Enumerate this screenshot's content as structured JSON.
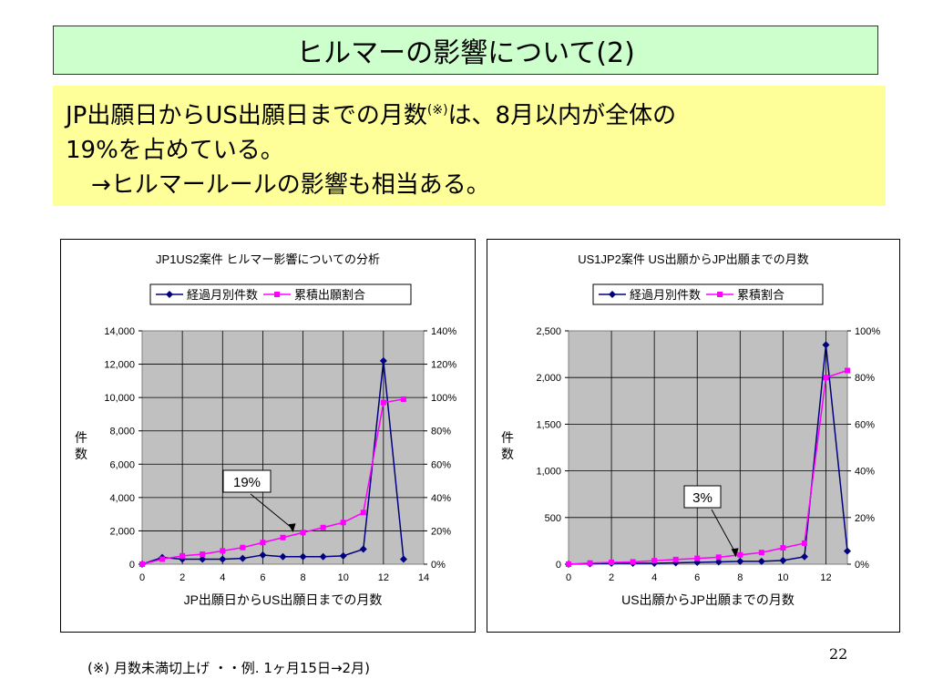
{
  "title": "ヒルマーの影響について(2)",
  "summary": {
    "line1a": "JP出願日からUS出願日までの月数",
    "line1_sup": "(※)",
    "line1b": "は、8月以内が全体の",
    "line2": "19%を占めている。",
    "line3": "→ヒルマールールの影響も相当ある。"
  },
  "chart_data": [
    {
      "type": "line",
      "title": "JP1US2案件  ヒルマー影響についての分析",
      "xlabel": "JP出願日からUS出願日までの月数",
      "ylabel": "件数",
      "y2label": "",
      "xlim": [
        0,
        14
      ],
      "xticks": [
        "0",
        "2",
        "4",
        "6",
        "8",
        "10",
        "12",
        "14"
      ],
      "ylim": [
        0,
        14000
      ],
      "yticks": [
        "0",
        "2,000",
        "4,000",
        "6,000",
        "8,000",
        "10,000",
        "12,000",
        "14,000"
      ],
      "y2lim": [
        0,
        140
      ],
      "y2ticks": [
        "0%",
        "20%",
        "40%",
        "60%",
        "80%",
        "100%",
        "120%",
        "140%"
      ],
      "grid": true,
      "legend_position": "top",
      "series": [
        {
          "name": "経過月別件数",
          "axis": "left",
          "color": "#000080",
          "marker": "diamond",
          "x": [
            0,
            1,
            2,
            3,
            4,
            5,
            6,
            7,
            8,
            9,
            10,
            11,
            12,
            13
          ],
          "values": [
            0,
            400,
            300,
            300,
            300,
            350,
            550,
            450,
            450,
            450,
            500,
            900,
            12200,
            300
          ]
        },
        {
          "name": "累積出願割合",
          "axis": "right",
          "color": "#ff00ff",
          "marker": "square",
          "x": [
            0,
            1,
            2,
            3,
            4,
            5,
            6,
            7,
            8,
            9,
            10,
            11,
            12,
            13
          ],
          "values": [
            0,
            3,
            5,
            6,
            8,
            10,
            13,
            16,
            19,
            22,
            25,
            31,
            97,
            99
          ]
        }
      ],
      "annotation": {
        "label": "19%",
        "x": 7.5,
        "y2": 19
      }
    },
    {
      "type": "line",
      "title": "US1JP2案件  US出願からJP出願までの月数",
      "xlabel": "US出願からJP出願までの月数",
      "ylabel": "件数",
      "y2label": "",
      "xlim": [
        0,
        13
      ],
      "xticks": [
        "0",
        "2",
        "4",
        "6",
        "8",
        "10",
        "12"
      ],
      "ylim": [
        0,
        2500
      ],
      "yticks": [
        "0",
        "500",
        "1,000",
        "1,500",
        "2,000",
        "2,500"
      ],
      "y2lim": [
        0,
        100
      ],
      "y2ticks": [
        "0%",
        "20%",
        "40%",
        "60%",
        "80%",
        "100%"
      ],
      "grid": true,
      "legend_position": "top",
      "series": [
        {
          "name": "経過月別件数",
          "axis": "left",
          "color": "#000080",
          "marker": "diamond",
          "x": [
            0,
            1,
            2,
            3,
            4,
            5,
            6,
            7,
            8,
            9,
            10,
            11,
            12,
            13
          ],
          "values": [
            0,
            5,
            10,
            10,
            10,
            15,
            20,
            25,
            30,
            30,
            40,
            80,
            2350,
            140
          ]
        },
        {
          "name": "累積割合",
          "axis": "right",
          "color": "#ff00ff",
          "marker": "square",
          "x": [
            0,
            1,
            2,
            3,
            4,
            5,
            6,
            7,
            8,
            9,
            10,
            11,
            12,
            13
          ],
          "values": [
            0,
            0.5,
            0.8,
            1,
            1.5,
            2,
            2.5,
            3,
            4,
            5,
            7,
            9,
            80,
            83
          ]
        }
      ],
      "annotation": {
        "label": "3%",
        "x": 7.8,
        "y2": 3
      }
    }
  ],
  "footnote": "(※) 月数未満切上げ  ・・例. 1ヶ月15日→2月)",
  "page_number": "22"
}
